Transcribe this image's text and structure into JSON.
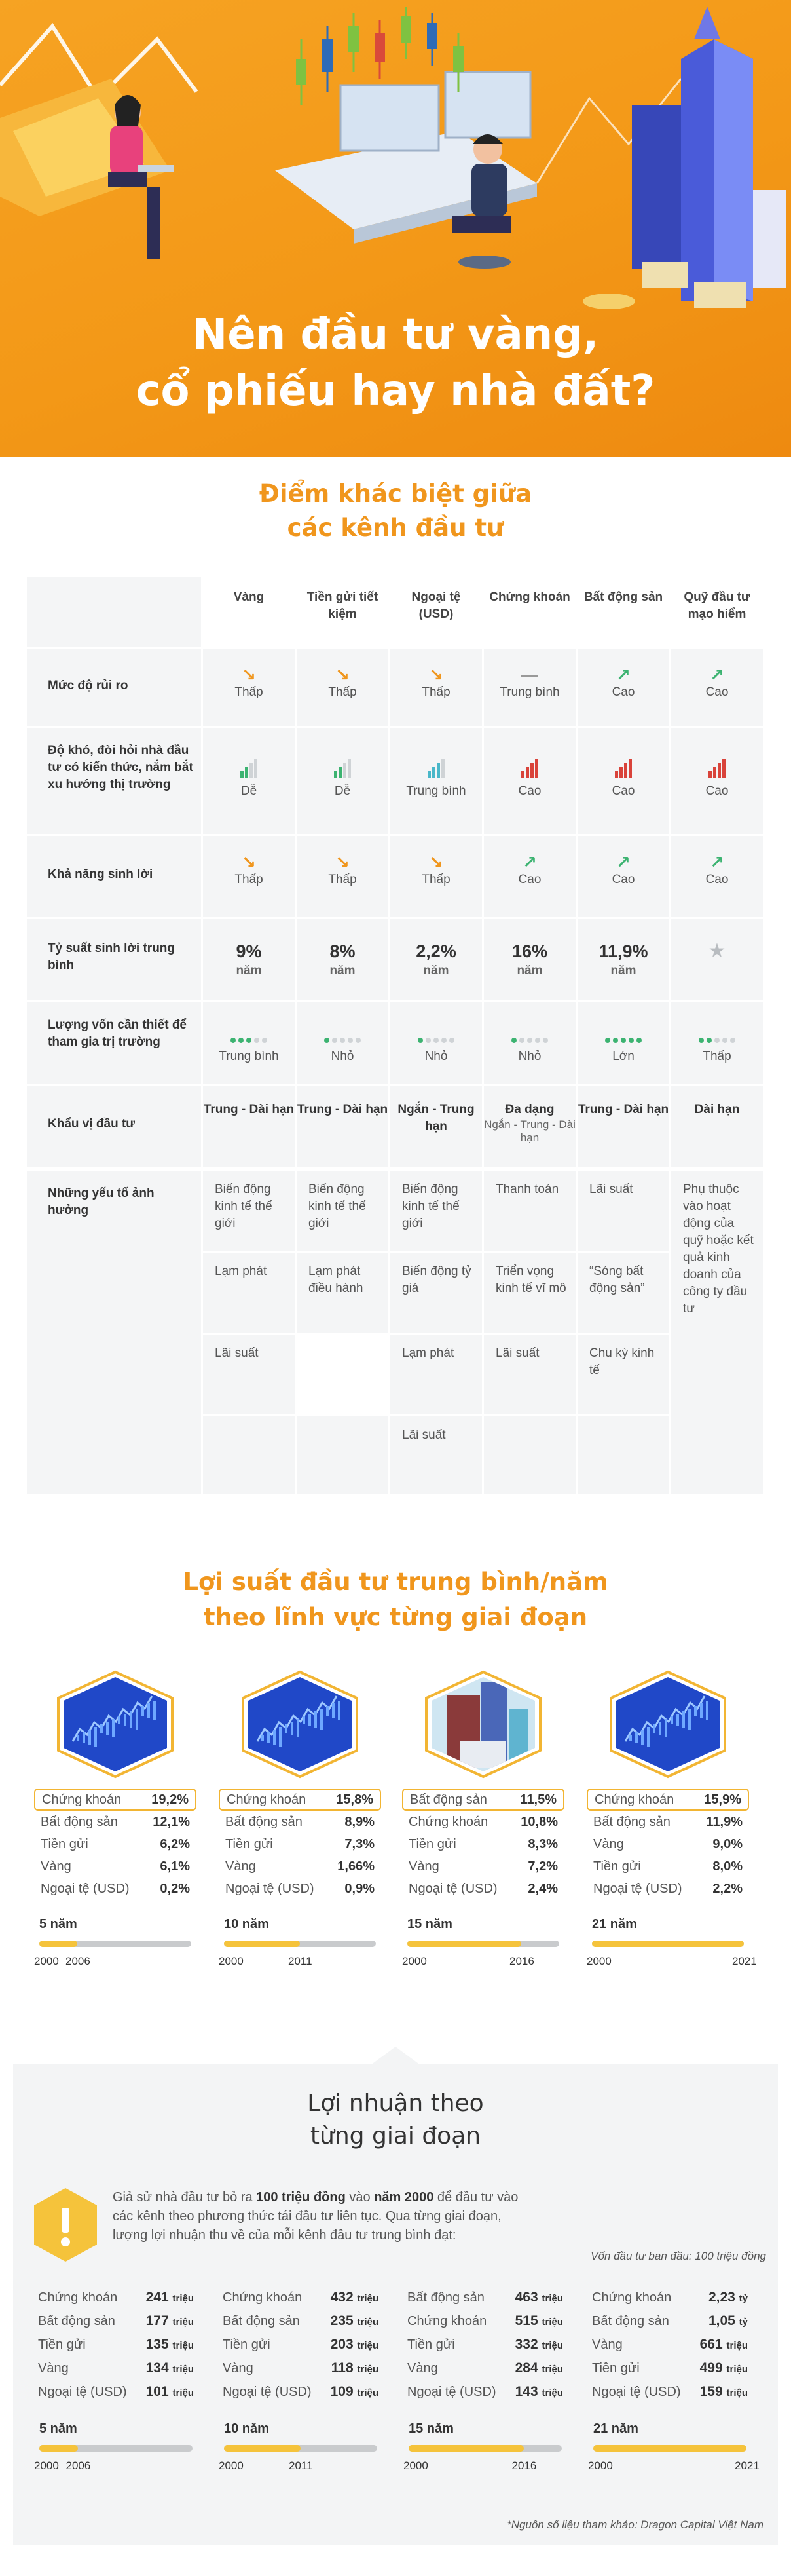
{
  "hero": {
    "title_line1": "Nên đầu tư vàng,",
    "title_line2": "cổ phiếu hay nhà đất?"
  },
  "compare": {
    "title_line1": "Điểm khác biệt giữa",
    "title_line2": "các kênh đầu tư",
    "columns": [
      "Vàng",
      "Tiền gửi tiết kiệm",
      "Ngoại tệ (USD)",
      "Chứng khoán",
      "Bất động sản",
      "Quỹ đầu tư mạo hiểm"
    ],
    "rows": {
      "risk": {
        "label": "Mức độ rủi ro",
        "values": [
          "Thấp",
          "Thấp",
          "Thấp",
          "Trung bình",
          "Cao",
          "Cao"
        ],
        "icons": [
          "arrow-down-icon",
          "arrow-down-icon",
          "arrow-down-icon",
          "dash-icon",
          "arrow-up-icon",
          "arrow-up-icon"
        ]
      },
      "difficulty": {
        "label": "Độ khó, đòi hỏi nhà đầu tư có kiến thức, nắm bắt xu hướng thị trường",
        "values": [
          "Dễ",
          "Dễ",
          "Trung bình",
          "Cao",
          "Cao",
          "Cao"
        ],
        "levels": [
          1,
          1,
          2,
          3,
          3,
          3
        ]
      },
      "profit": {
        "label": "Khả năng sinh lời",
        "values": [
          "Thấp",
          "Thấp",
          "Thấp",
          "Cao",
          "Cao",
          "Cao"
        ],
        "icons": [
          "arrow-down-icon",
          "arrow-down-icon",
          "arrow-down-icon",
          "arrow-up-icon",
          "arrow-up-icon",
          "arrow-up-icon"
        ]
      },
      "yield": {
        "label": "Tỷ suất sinh lời trung bình",
        "values": [
          "9%",
          "8%",
          "2,2%",
          "16%",
          "11,9%",
          ""
        ],
        "unit": "năm"
      },
      "capital": {
        "label": "Lượng vốn cần thiết để tham gia trị trường",
        "values": [
          "Trung bình",
          "Nhỏ",
          "Nhỏ",
          "Nhỏ",
          "Lớn",
          "Thấp"
        ],
        "dots": [
          3,
          1,
          1,
          1,
          5,
          2
        ]
      },
      "horizon": {
        "label": "Khẩu vị đầu tư",
        "values": [
          "Trung - Dài hạn",
          "Trung - Dài hạn",
          "Ngắn - Trung hạn",
          "Đa dạng",
          "Trung - Dài hạn",
          "Dài hạn"
        ],
        "sub": [
          "",
          "",
          "",
          "Ngắn - Trung - Dài hạn",
          "",
          ""
        ]
      },
      "factors": {
        "label": "Những yếu tố ảnh hưởng",
        "gold": [
          "Biến động kinh tế thế giới",
          "Lạm phát",
          "Lãi suất"
        ],
        "savings": [
          "Biến động kinh tế thế giới",
          "Lạm phát điều hành"
        ],
        "fx": [
          "Biến động kinh tế thế giới",
          "Biến động tỷ giá",
          "Lạm phát",
          "Lãi suất"
        ],
        "stocks": [
          "Thanh toán",
          "Triển vọng kinh tế vĩ mô",
          "Lãi suất"
        ],
        "realestate": [
          "Lãi suất",
          "“Sóng bất động sản”",
          "Chu kỳ kinh tế"
        ],
        "vc": [
          "Phụ thuộc vào hoạt động của quỹ hoặc kết quả kinh doanh của công ty đầu tư"
        ]
      }
    }
  },
  "returns": {
    "title_line1": "Lợi suất đầu tư trung bình/năm",
    "title_line2": "theo lĩnh vực từng giai đoạn",
    "periods": [
      {
        "label": "5 năm",
        "start": "2000",
        "end": "2006",
        "fill": 0.25,
        "image": "stock-chart-icon",
        "items": [
          [
            "Chứng khoán",
            "19,2%"
          ],
          [
            "Bất động sản",
            "12,1%"
          ],
          [
            "Tiền gửi",
            "6,2%"
          ],
          [
            "Vàng",
            "6,1%"
          ],
          [
            "Ngoại tệ (USD)",
            "0,2%"
          ]
        ]
      },
      {
        "label": "10 năm",
        "start": "2000",
        "end": "2011",
        "fill": 0.5,
        "image": "stock-chart-icon",
        "items": [
          [
            "Chứng khoán",
            "15,8%"
          ],
          [
            "Bất động sản",
            "8,9%"
          ],
          [
            "Tiền gửi",
            "7,3%"
          ],
          [
            "Vàng",
            "1,66%"
          ],
          [
            "Ngoại tệ (USD)",
            "0,9%"
          ]
        ]
      },
      {
        "label": "15 năm",
        "start": "2000",
        "end": "2016",
        "fill": 0.75,
        "image": "buildings-icon",
        "items": [
          [
            "Bất động sản",
            "11,5%"
          ],
          [
            "Chứng khoán",
            "10,8%"
          ],
          [
            "Tiền gửi",
            "8,3%"
          ],
          [
            "Vàng",
            "7,2%"
          ],
          [
            "Ngoại tệ (USD)",
            "2,4%"
          ]
        ]
      },
      {
        "label": "21 năm",
        "start": "2000",
        "end": "2021",
        "fill": 1.0,
        "image": "stock-chart-icon",
        "items": [
          [
            "Chứng khoán",
            "15,9%"
          ],
          [
            "Bất động sản",
            "11,9%"
          ],
          [
            "Vàng",
            "9,0%"
          ],
          [
            "Tiền gửi",
            "8,0%"
          ],
          [
            "Ngoại tệ (USD)",
            "2,2%"
          ]
        ]
      }
    ]
  },
  "profit": {
    "title_line1": "Lợi nhuận theo",
    "title_line2": "từng giai đoạn",
    "intro_a": "Giả sử nhà đầu tư bỏ ra ",
    "intro_b": "100 triệu đồng",
    "intro_c": " vào ",
    "intro_d": "năm 2000",
    "intro_e": " để đầu tư vào các kênh theo phương thức tái đầu tư liên tục. Qua từng giai đoạn, lượng lợi nhuận thu về của mỗi kênh đầu tư trung bình đạt:",
    "note": "Vốn đầu tư ban đầu: 100 triệu đồng",
    "periods": [
      {
        "label": "5 năm",
        "start": "2000",
        "end": "2006",
        "fill": 0.25,
        "items": [
          [
            "Chứng khoán",
            "241",
            "triệu"
          ],
          [
            "Bất động sản",
            "177",
            "triệu"
          ],
          [
            "Tiền gửi",
            "135",
            "triệu"
          ],
          [
            "Vàng",
            "134",
            "triệu"
          ],
          [
            "Ngoại tệ (USD)",
            "101",
            "triệu"
          ]
        ]
      },
      {
        "label": "10 năm",
        "start": "2000",
        "end": "2011",
        "fill": 0.5,
        "items": [
          [
            "Chứng khoán",
            "432",
            "triệu"
          ],
          [
            "Bất động sản",
            "235",
            "triệu"
          ],
          [
            "Tiền gửi",
            "203",
            "triệu"
          ],
          [
            "Vàng",
            "118",
            "triệu"
          ],
          [
            "Ngoại tệ (USD)",
            "109",
            "triệu"
          ]
        ]
      },
      {
        "label": "15 năm",
        "start": "2000",
        "end": "2016",
        "fill": 0.75,
        "items": [
          [
            "Bất động sản",
            "463",
            "triệu"
          ],
          [
            "Chứng khoán",
            "515",
            "triệu"
          ],
          [
            "Tiền gửi",
            "332",
            "triệu"
          ],
          [
            "Vàng",
            "284",
            "triệu"
          ],
          [
            "Ngoại tệ (USD)",
            "143",
            "triệu"
          ]
        ]
      },
      {
        "label": "21 năm",
        "start": "2000",
        "end": "2021",
        "fill": 1.0,
        "items": [
          [
            "Chứng khoán",
            "2,23",
            "tỷ"
          ],
          [
            "Bất động sản",
            "1,05",
            "tỷ"
          ],
          [
            "Vàng",
            "661",
            "triệu"
          ],
          [
            "Tiền gửi",
            "499",
            "triệu"
          ],
          [
            "Ngoại tệ (USD)",
            "159",
            "triệu"
          ]
        ]
      }
    ],
    "source": "*Nguồn số liệu tham khảo: Dragon Capital Việt Nam"
  },
  "colors": {
    "orange": "#f0961d",
    "green": "#3cb371",
    "red": "#d9433a",
    "teal": "#49b7c9",
    "yellow": "#f5c33b",
    "gray": "#c9cbcd"
  }
}
